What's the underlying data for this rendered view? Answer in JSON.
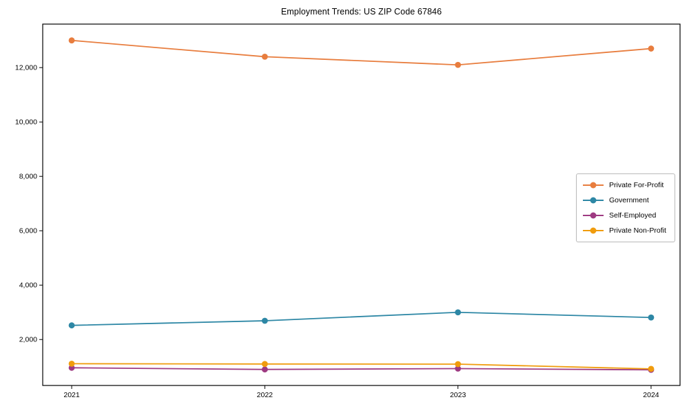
{
  "chart_data": {
    "type": "line",
    "title": "Employment Trends: US ZIP Code 67846",
    "xlabel": "",
    "ylabel": "",
    "categories": [
      "2021",
      "2022",
      "2023",
      "2024"
    ],
    "series": [
      {
        "name": "Private For-Profit",
        "color": "#E87D3E",
        "values": [
          13000,
          12400,
          12100,
          12700
        ]
      },
      {
        "name": "Government",
        "color": "#2D87A5",
        "values": [
          2520,
          2690,
          3000,
          2810
        ]
      },
      {
        "name": "Self-Employed",
        "color": "#9E3A82",
        "values": [
          960,
          900,
          930,
          885
        ]
      },
      {
        "name": "Private Non-Profit",
        "color": "#F09C0D",
        "values": [
          1110,
          1100,
          1095,
          920
        ]
      }
    ],
    "yticks": [
      2000,
      4000,
      6000,
      8000,
      10000,
      12000
    ],
    "ylim": [
      310,
      13600
    ],
    "grid": false,
    "legend_position": "center right",
    "marker": "circle",
    "spine_color": "#000000"
  }
}
